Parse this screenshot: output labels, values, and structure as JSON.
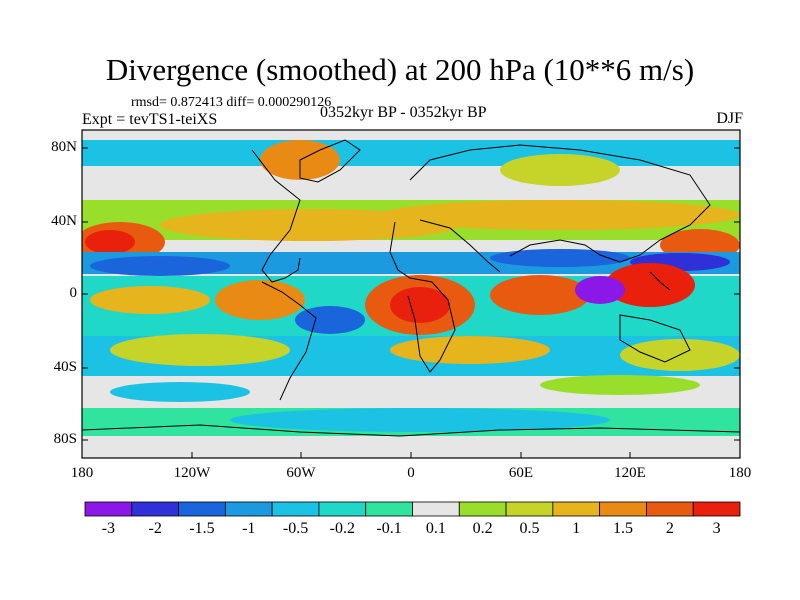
{
  "title": "Divergence (smoothed) at 200 hPa (10**6 m/s)",
  "stats": "rmsd= 0.872413 diff= 0.000290126",
  "experiment": "Expt = tevTS1-teiXS",
  "period": "0352kyr BP - 0352kyr BP",
  "season": "DJF",
  "lat_labels": [
    "80N",
    "40N",
    "0",
    "40S",
    "80S"
  ],
  "lon_labels": [
    "180",
    "120W",
    "60W",
    "0",
    "60E",
    "120E",
    "180"
  ],
  "colorbar": {
    "labels": [
      "-3",
      "-2",
      "-1.5",
      "-1",
      "-0.5",
      "-0.2",
      "-0.1",
      "0.1",
      "0.2",
      "0.5",
      "1",
      "1.5",
      "2",
      "3"
    ],
    "colors": [
      "#8c18e8",
      "#3030d8",
      "#1a64dc",
      "#1c9ae0",
      "#1cc2e4",
      "#20d8c8",
      "#30e4a0",
      "#e6e6e6",
      "#9ade2c",
      "#c6d42a",
      "#e6b41c",
      "#e88a14",
      "#e85a10",
      "#e8200c"
    ]
  }
}
